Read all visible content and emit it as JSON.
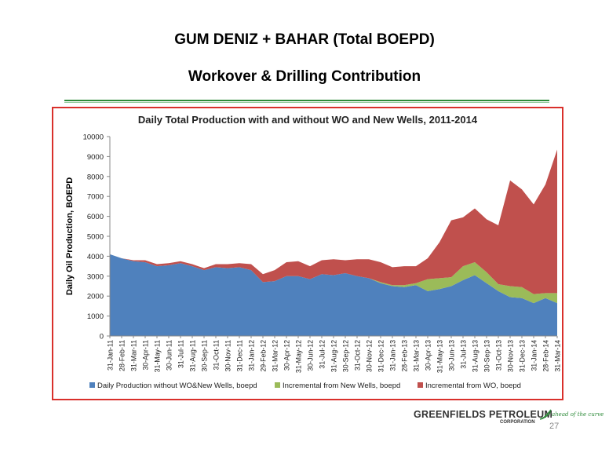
{
  "slide": {
    "title_line1": "GUM DENIZ + BAHAR (Total BOEPD)",
    "title_line2": "Workover & Drilling Contribution",
    "page_number": "27",
    "logo_main": "GREENFIELDS PETROLEUM",
    "logo_sub": "CORPORATION",
    "logo_tagline": "ahead of the curve"
  },
  "colors": {
    "rule": "#2e8b3a",
    "frame_border": "#d9302b",
    "series_base": "#4f81bd",
    "series_new_wells": "#9bbb59",
    "series_wo": "#c0504d"
  },
  "chart_data": {
    "type": "area",
    "stacked": true,
    "title": "Daily Total Production with and without WO and New Wells, 2011-2014",
    "ylabel": "Daily Oil Production, BOEPD",
    "xlabel": "",
    "ylim": [
      0,
      10000
    ],
    "yticks": [
      0,
      1000,
      2000,
      3000,
      4000,
      5000,
      6000,
      7000,
      8000,
      9000,
      10000
    ],
    "grid": false,
    "legend_position": "bottom",
    "categories": [
      "31-Jan-11",
      "28-Feb-11",
      "31-Mar-11",
      "30-Apr-11",
      "31-May-11",
      "30-Jun-11",
      "31-Jul-11",
      "31-Aug-11",
      "30-Sep-11",
      "31-Oct-11",
      "30-Nov-11",
      "31-Dec-11",
      "31-Jan-12",
      "29-Feb-12",
      "31-Mar-12",
      "30-Apr-12",
      "31-May-12",
      "30-Jun-12",
      "31-Jul-12",
      "31-Aug-12",
      "30-Sep-12",
      "31-Oct-12",
      "30-Nov-12",
      "31-Dec-12",
      "31-Jan-13",
      "28-Feb-13",
      "31-Mar-13",
      "30-Apr-13",
      "31-May-13",
      "30-Jun-13",
      "31-Jul-13",
      "31-Aug-13",
      "30-Sep-13",
      "31-Oct-13",
      "30-Nov-13",
      "31-Dec-13",
      "31-Jan-14",
      "28-Feb-14",
      "31-Mar-14"
    ],
    "series": [
      {
        "name": "Daily Production without WO&New Wells, boepd",
        "values": [
          4100,
          3900,
          3750,
          3700,
          3500,
          3550,
          3650,
          3500,
          3300,
          3450,
          3400,
          3450,
          3300,
          2700,
          2750,
          3000,
          3000,
          2850,
          3100,
          3050,
          3150,
          3000,
          2900,
          2650,
          2500,
          2450,
          2550,
          2250,
          2350,
          2500,
          2800,
          3050,
          2650,
          2250,
          1950,
          1900,
          1650,
          1900,
          1650
        ]
      },
      {
        "name": "Incremental from New Wells, boepd",
        "values": [
          0,
          0,
          0,
          0,
          0,
          0,
          0,
          0,
          0,
          0,
          0,
          0,
          0,
          0,
          0,
          0,
          0,
          0,
          0,
          0,
          0,
          0,
          0,
          50,
          50,
          100,
          100,
          600,
          550,
          450,
          700,
          650,
          550,
          350,
          550,
          550,
          450,
          250,
          500
        ]
      },
      {
        "name": "Incremental from WO, boepd",
        "values": [
          0,
          0,
          50,
          100,
          100,
          100,
          100,
          100,
          100,
          150,
          200,
          200,
          300,
          400,
          550,
          700,
          750,
          650,
          700,
          800,
          650,
          850,
          950,
          1000,
          900,
          950,
          850,
          1050,
          1800,
          2850,
          2450,
          2700,
          2650,
          2950,
          5300,
          4900,
          4500,
          5450,
          7200
        ]
      }
    ]
  }
}
